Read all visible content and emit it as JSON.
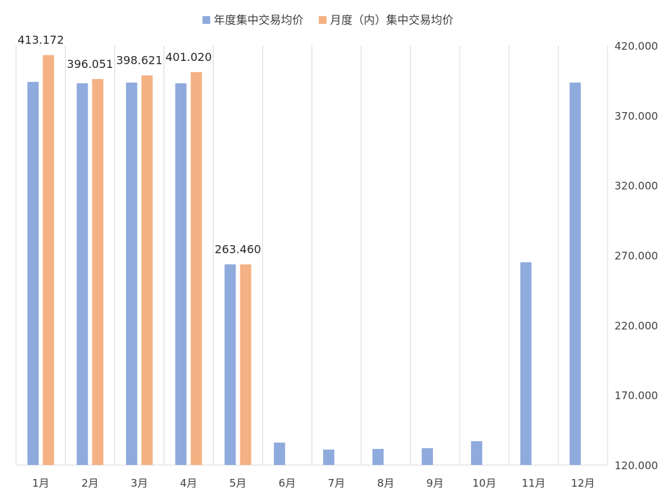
{
  "chart_data": {
    "type": "bar",
    "categories": [
      "1月",
      "2月",
      "3月",
      "4月",
      "5月",
      "6月",
      "7月",
      "8月",
      "9月",
      "10月",
      "11月",
      "12月"
    ],
    "series": [
      {
        "name": "年度集中交易均价",
        "color": "#8faadc",
        "values": [
          394.0,
          393.0,
          393.5,
          393.0,
          263.5,
          136.0,
          131.0,
          131.5,
          132.0,
          137.0,
          265.0,
          393.5
        ]
      },
      {
        "name": "月度（内）集中交易均价",
        "color": "#f4b183",
        "values": [
          413.172,
          396.051,
          398.621,
          401.02,
          263.46,
          null,
          null,
          null,
          null,
          null,
          null,
          null
        ]
      }
    ],
    "data_labels": [
      "413.172",
      "396.051",
      "398.621",
      "401.020",
      "263.460"
    ],
    "y_axis": {
      "position": "right",
      "ylim": [
        120,
        420
      ],
      "ticks": [
        "120.000",
        "170.000",
        "220.000",
        "270.000",
        "320.000",
        "370.000",
        "420.000"
      ]
    },
    "legend_position": "top-center",
    "grid": "vertical-separators"
  }
}
